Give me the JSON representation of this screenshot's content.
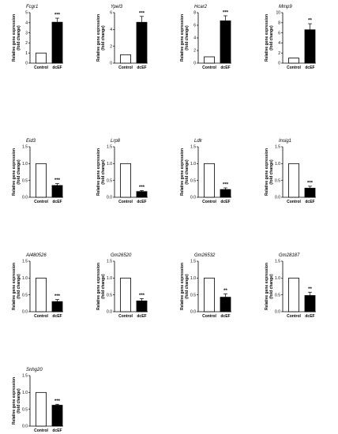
{
  "figure": {
    "ylabel_line1": "Relative gene expression",
    "ylabel_line2": "(fold change)"
  },
  "chart_data": [
    {
      "type": "bar",
      "title": "Fcgr1",
      "categories": [
        "Control",
        "dcEF"
      ],
      "values": [
        1,
        4.05
      ],
      "errors": [
        0,
        0.4
      ],
      "significance": "***",
      "ylim": [
        0,
        5
      ],
      "yticks": [
        0,
        1,
        2,
        3,
        4,
        5
      ],
      "tick_labels": [
        "0",
        "1",
        "2",
        "3",
        "4",
        "5"
      ]
    },
    {
      "type": "bar",
      "title": "Ypel3",
      "categories": [
        "Control",
        "dcEF"
      ],
      "values": [
        1,
        4.85
      ],
      "errors": [
        0,
        0.7
      ],
      "significance": "***",
      "ylim": [
        0,
        6
      ],
      "yticks": [
        0,
        2,
        4,
        6
      ],
      "tick_labels": [
        "0",
        "2",
        "4",
        "6"
      ]
    },
    {
      "type": "bar",
      "title": "Hcar2",
      "categories": [
        "Control",
        "dcEF"
      ],
      "values": [
        1,
        6.7
      ],
      "errors": [
        0,
        0.8
      ],
      "significance": "***",
      "ylim": [
        0,
        8
      ],
      "yticks": [
        0,
        2,
        4,
        6,
        8
      ],
      "tick_labels": [
        "0",
        "2",
        "4",
        "6",
        "8"
      ]
    },
    {
      "type": "bar",
      "title": "Mmp9",
      "categories": [
        "Control",
        "dcEF"
      ],
      "values": [
        1,
        6.6
      ],
      "errors": [
        0,
        1.2
      ],
      "significance": "**",
      "ylim": [
        0,
        10
      ],
      "yticks": [
        0,
        2,
        4,
        6,
        8,
        10
      ],
      "tick_labels": [
        "0",
        "2",
        "4",
        "6",
        "8",
        "10"
      ]
    },
    {
      "type": "bar",
      "title": "Eid3",
      "categories": [
        "Control",
        "dcEF"
      ],
      "values": [
        1,
        0.35
      ],
      "errors": [
        0,
        0.06
      ],
      "significance": "***",
      "ylim": [
        0,
        1.5
      ],
      "yticks": [
        0,
        0.5,
        1,
        1.5
      ],
      "tick_labels": [
        "0.0",
        "0.5",
        "1.0",
        "1.5"
      ]
    },
    {
      "type": "bar",
      "title": "Lrp8",
      "categories": [
        "Control",
        "dcEF"
      ],
      "values": [
        1,
        0.17
      ],
      "errors": [
        0,
        0.03
      ],
      "significance": "***",
      "ylim": [
        0,
        1.5
      ],
      "yticks": [
        0,
        0.5,
        1,
        1.5
      ],
      "tick_labels": [
        "0.0",
        "0.5",
        "1.0",
        "1.5"
      ]
    },
    {
      "type": "bar",
      "title": "Ldlr",
      "categories": [
        "Control",
        "dcEF"
      ],
      "values": [
        1,
        0.23
      ],
      "errors": [
        0,
        0.05
      ],
      "significance": "***",
      "ylim": [
        0,
        1.5
      ],
      "yticks": [
        0,
        0.5,
        1,
        1.5
      ],
      "tick_labels": [
        "0.0",
        "0.5",
        "1.0",
        "1.5"
      ]
    },
    {
      "type": "bar",
      "title": "Insig1",
      "categories": [
        "Control",
        "dcEF"
      ],
      "values": [
        1,
        0.27
      ],
      "errors": [
        0,
        0.06
      ],
      "significance": "***",
      "ylim": [
        0,
        1.5
      ],
      "yticks": [
        0,
        0.5,
        1,
        1.5
      ],
      "tick_labels": [
        "0.0",
        "0.5",
        "1.0",
        "1.5"
      ]
    },
    {
      "type": "bar",
      "title": "AI480526",
      "categories": [
        "Control",
        "dcEF"
      ],
      "values": [
        1,
        0.3
      ],
      "errors": [
        0,
        0.06
      ],
      "significance": "***",
      "ylim": [
        0,
        1.5
      ],
      "yticks": [
        0,
        0.5,
        1,
        1.5
      ],
      "tick_labels": [
        "0.0",
        "0.5",
        "1.0",
        "1.5"
      ]
    },
    {
      "type": "bar",
      "title": "Gm26520",
      "categories": [
        "Control",
        "dcEF"
      ],
      "values": [
        1,
        0.32
      ],
      "errors": [
        0,
        0.07
      ],
      "significance": "***",
      "ylim": [
        0,
        1.5
      ],
      "yticks": [
        0,
        0.5,
        1,
        1.5
      ],
      "tick_labels": [
        "0.0",
        "0.5",
        "1.0",
        "1.5"
      ]
    },
    {
      "type": "bar",
      "title": "Gm26532",
      "categories": [
        "Control",
        "dcEF"
      ],
      "values": [
        1,
        0.43
      ],
      "errors": [
        0,
        0.1
      ],
      "significance": "**",
      "ylim": [
        0,
        1.5
      ],
      "yticks": [
        0,
        0.5,
        1,
        1.5
      ],
      "tick_labels": [
        "0.0",
        "0.5",
        "1.0",
        "1.5"
      ]
    },
    {
      "type": "bar",
      "title": "Gm28187",
      "categories": [
        "Control",
        "dcEF"
      ],
      "values": [
        1,
        0.48
      ],
      "errors": [
        0,
        0.1
      ],
      "significance": "**",
      "ylim": [
        0,
        1.5
      ],
      "yticks": [
        0,
        0.5,
        1,
        1.5
      ],
      "tick_labels": [
        "0.0",
        "0.5",
        "1.0",
        "1.5"
      ]
    },
    {
      "type": "bar",
      "title": "Snhg20",
      "categories": [
        "Control",
        "dcEF"
      ],
      "values": [
        1,
        0.62
      ],
      "errors": [
        0,
        0.03
      ],
      "significance": "***",
      "ylim": [
        0,
        1.5
      ],
      "yticks": [
        0,
        0.5,
        1,
        1.5
      ],
      "tick_labels": [
        "0.0",
        "0.5",
        "1.0",
        "1.5"
      ]
    }
  ]
}
